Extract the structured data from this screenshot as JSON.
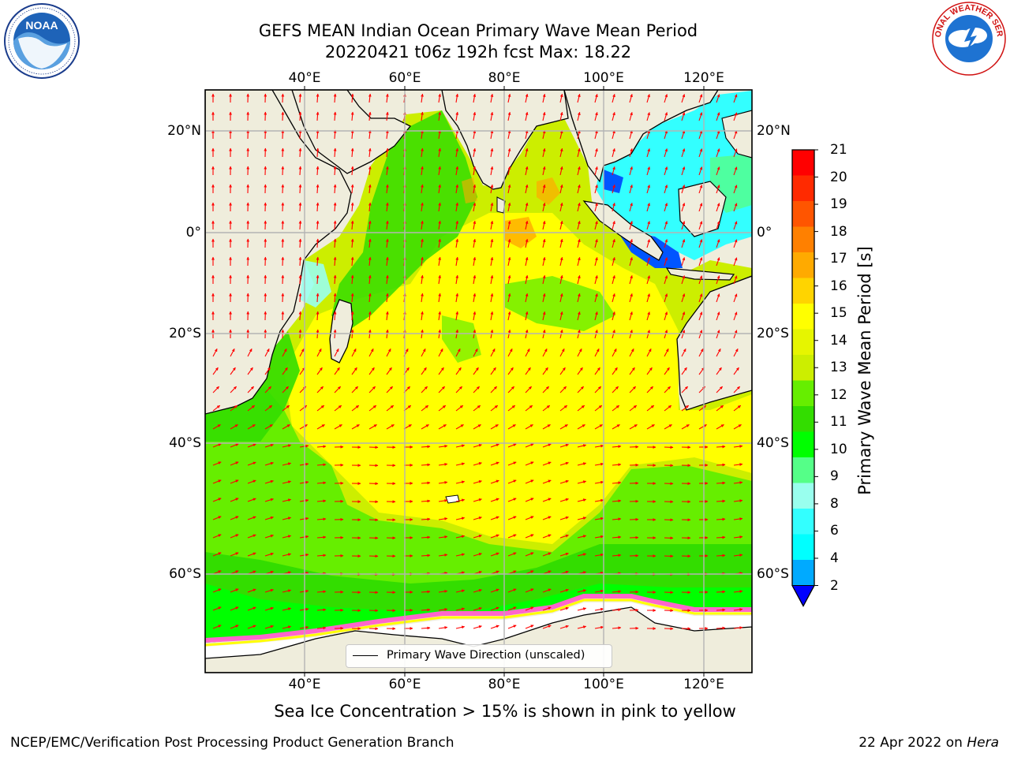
{
  "title": {
    "line1": "GEFS MEAN Indian Ocean Primary Wave Mean Period",
    "line2": "20220421 t06z 192h fcst   Max: 18.22"
  },
  "axes": {
    "lon_ticks": [
      "40°E",
      "60°E",
      "80°E",
      "100°E",
      "120°E"
    ],
    "lat_ticks": [
      "20°N",
      "0°",
      "20°S",
      "40°S",
      "60°S"
    ]
  },
  "colorbar": {
    "label": "Primary Wave Mean Period [s]",
    "ticks": [
      "21",
      "20",
      "19",
      "18",
      "17",
      "16",
      "15",
      "14",
      "13",
      "12",
      "11",
      "10",
      "9",
      "8",
      "6",
      "4",
      "2"
    ],
    "colors": [
      "#ff0000",
      "#ff2a00",
      "#ff5500",
      "#ff8000",
      "#ffaa00",
      "#ffd400",
      "#ffff00",
      "#e6f500",
      "#ccee00",
      "#66ee00",
      "#33dd00",
      "#00ff00",
      "#55ff88",
      "#99ffee",
      "#33ffff",
      "#00ffff",
      "#00aaff",
      "#0055ff"
    ],
    "extend_color": "#0000ff"
  },
  "legend": {
    "label": "Primary Wave Direction (unscaled)"
  },
  "subtitle": "Sea Ice Concentration > 15% is shown in pink to yellow",
  "footer": {
    "left": "NCEP/EMC/Verification Post Processing Product Generation Branch",
    "right_date": "22 Apr 2022 on",
    "right_host": "Hera"
  },
  "logos": {
    "noaa": "NOAA",
    "nws": "NATIONAL WEATHER SERVICE"
  },
  "map_colors": {
    "land": "#efeddc",
    "antarctica": "#ffffff",
    "arrow": "#ff0000",
    "grid": "#b4b4b4",
    "sea_ice": "#ff66cc"
  }
}
